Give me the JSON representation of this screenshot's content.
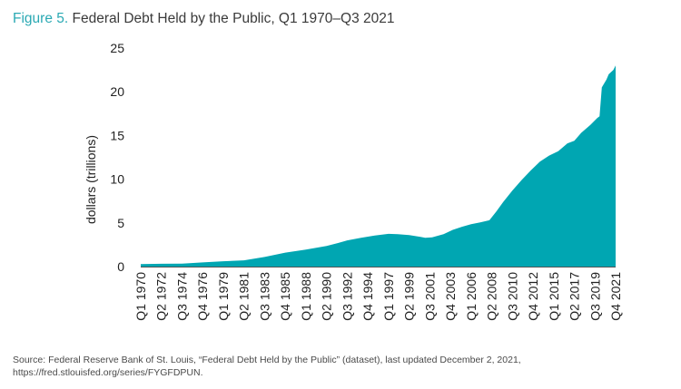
{
  "title": {
    "figure_label": "Figure 5.",
    "text": "Federal Debt Held by the Public, Q1 1970–Q3 2021"
  },
  "source": "Source: Federal Reserve Bank of St. Louis, “Federal Debt Held by the Public” (dataset), last updated December 2, 2021, https://fred.stlouisfed.org/series/FYGFDPUN.",
  "chart_data": {
    "type": "area",
    "title": "Federal Debt Held by the Public, Q1 1970–Q3 2021",
    "ylabel": "dollars (trillions)",
    "xlabel": "",
    "ylim": [
      0,
      25
    ],
    "yticks": [
      0,
      5,
      10,
      15,
      20,
      25
    ],
    "grid": false,
    "color": "#00a6b2",
    "x_tick_labels": [
      "Q1 1970",
      "Q2 1972",
      "Q3 1974",
      "Q4 1976",
      "Q1 1979",
      "Q2 1981",
      "Q3 1983",
      "Q4 1985",
      "Q1 1988",
      "Q2 1990",
      "Q3 1992",
      "Q4 1994",
      "Q1 1997",
      "Q2 1999",
      "Q3 2001",
      "Q4 2003",
      "Q1 2006",
      "Q2 2008",
      "Q3 2010",
      "Q4 2012",
      "Q1 2015",
      "Q2 2017",
      "Q3 2019",
      "Q4 2021"
    ],
    "series": [
      {
        "points": [
          [
            1970.0,
            0.29
          ],
          [
            1972.25,
            0.32
          ],
          [
            1974.5,
            0.34
          ],
          [
            1976.75,
            0.48
          ],
          [
            1979.0,
            0.61
          ],
          [
            1981.25,
            0.72
          ],
          [
            1983.5,
            1.1
          ],
          [
            1985.75,
            1.6
          ],
          [
            1988.0,
            1.95
          ],
          [
            1990.25,
            2.35
          ],
          [
            1991.5,
            2.7
          ],
          [
            1992.5,
            3.0
          ],
          [
            1994.0,
            3.3
          ],
          [
            1995.5,
            3.55
          ],
          [
            1997.0,
            3.75
          ],
          [
            1998.0,
            3.7
          ],
          [
            1999.25,
            3.6
          ],
          [
            2000.5,
            3.4
          ],
          [
            2001.0,
            3.3
          ],
          [
            2001.75,
            3.35
          ],
          [
            2003.0,
            3.7
          ],
          [
            2004.0,
            4.2
          ],
          [
            2005.0,
            4.55
          ],
          [
            2006.0,
            4.85
          ],
          [
            2007.0,
            5.05
          ],
          [
            2008.0,
            5.3
          ],
          [
            2008.75,
            6.3
          ],
          [
            2009.5,
            7.4
          ],
          [
            2010.5,
            8.7
          ],
          [
            2011.5,
            9.9
          ],
          [
            2012.5,
            11.0
          ],
          [
            2013.5,
            12.0
          ],
          [
            2014.5,
            12.7
          ],
          [
            2015.5,
            13.2
          ],
          [
            2016.5,
            14.1
          ],
          [
            2017.25,
            14.4
          ],
          [
            2018.0,
            15.3
          ],
          [
            2019.0,
            16.2
          ],
          [
            2019.75,
            17.0
          ],
          [
            2020.0,
            17.2
          ],
          [
            2020.25,
            20.5
          ],
          [
            2020.75,
            21.4
          ],
          [
            2021.0,
            22.0
          ],
          [
            2021.5,
            22.5
          ],
          [
            2021.75,
            23.0
          ]
        ]
      }
    ]
  }
}
